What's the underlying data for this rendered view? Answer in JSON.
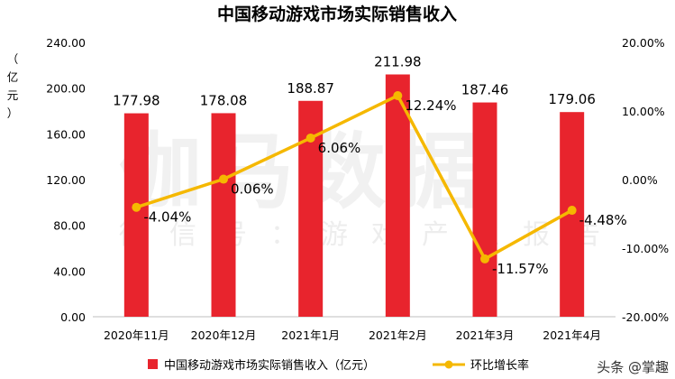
{
  "chart_data": {
    "type": "bar",
    "title": "中国移动游戏市场实际销售收入",
    "ylabel": "亿元",
    "ylabel_chars": [
      "（",
      "亿",
      "元",
      "）"
    ],
    "categories": [
      "2020年11月",
      "2020年12月",
      "2021年1月",
      "2021年2月",
      "2021年3月",
      "2021年4月"
    ],
    "ylim": [
      0,
      240
    ],
    "y_ticks": [
      "0.00",
      "40.00",
      "80.00",
      "120.00",
      "160.00",
      "200.00",
      "240.00"
    ],
    "y2lim": [
      -20,
      20
    ],
    "y2_ticks": [
      "-20.00%",
      "-10.00%",
      "0.00%",
      "10.00%",
      "20.00%"
    ],
    "series": [
      {
        "name": "中国移动游戏市场实际销售收入（亿元）",
        "kind": "bar",
        "axis": "left",
        "color": "#e8242d",
        "values": [
          177.98,
          178.08,
          188.87,
          211.98,
          187.46,
          179.06
        ],
        "labels": [
          "177.98",
          "178.08",
          "188.87",
          "211.98",
          "187.46",
          "179.06"
        ]
      },
      {
        "name": "环比增长率",
        "kind": "line",
        "axis": "right",
        "color": "#f5b800",
        "values": [
          -4.04,
          0.06,
          6.06,
          12.24,
          -11.57,
          -4.48
        ],
        "labels": [
          "-4.04%",
          "0.06%",
          "6.06%",
          "12.24%",
          "-11.57%",
          "-4.48%"
        ]
      }
    ],
    "legend_position": "bottom-center",
    "grid": false
  },
  "watermark": {
    "main": "伽马数据",
    "sub": "微信号：游戏产业报告"
  },
  "footer": {
    "credit": "头条 @掌趣"
  }
}
